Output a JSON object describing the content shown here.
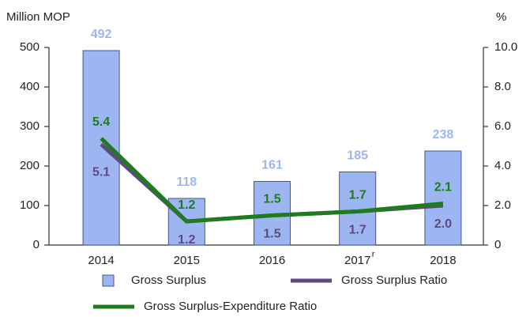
{
  "chart_data": {
    "type": "bar",
    "y_label": "Million MOP",
    "y2_label": "%",
    "categories": [
      "2014",
      "2015",
      "2016",
      "2017",
      "2018"
    ],
    "category_notes": [
      null,
      null,
      null,
      "r",
      null
    ],
    "ylim": [
      0,
      500
    ],
    "yticks": [
      0,
      100,
      200,
      300,
      400,
      500
    ],
    "y2lim": [
      0,
      10
    ],
    "y2ticks": [
      0,
      {
        "value": 2,
        "label": "2.0"
      },
      {
        "value": 4,
        "label": "4.0"
      },
      {
        "value": 6,
        "label": "6.0"
      },
      {
        "value": 8,
        "label": "8.0"
      },
      {
        "value": 10,
        "label": "10.0"
      }
    ],
    "series": [
      {
        "name": "Gross Surplus",
        "type": "bar",
        "color": "#9db6f2",
        "values": [
          492,
          118,
          161,
          185,
          238
        ]
      },
      {
        "name": "Gross Surplus Ratio",
        "type": "line",
        "axis": "y2",
        "color": "#5e4b7c",
        "values": [
          5.1,
          1.2,
          1.5,
          1.7,
          2.0
        ],
        "value_labels": [
          "5.1",
          "1.2",
          "1.5",
          "1.7",
          "2.0"
        ]
      },
      {
        "name": "Gross Surplus-Expenditure Ratio",
        "type": "line",
        "axis": "y2",
        "color": "#1d7d1d",
        "values": [
          5.4,
          1.2,
          1.5,
          1.7,
          2.1
        ],
        "value_labels": [
          "5.4",
          "1.2",
          "1.5",
          "1.7",
          "2.1"
        ]
      }
    ]
  }
}
